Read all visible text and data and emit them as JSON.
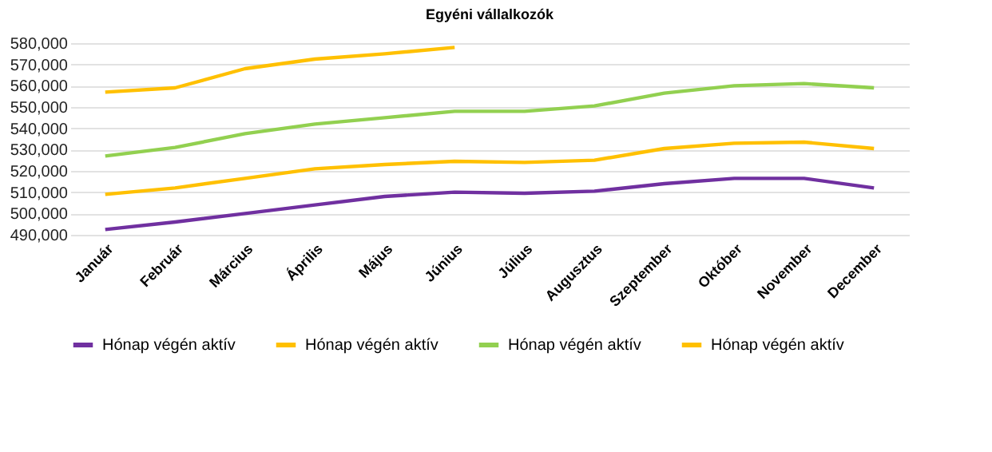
{
  "chart_data": {
    "type": "line",
    "title": "Egyéni vállalkozók",
    "categories": [
      "Január",
      "Február",
      "Március",
      "Április",
      "Május",
      "Június",
      "Július",
      "Augusztus",
      "Szeptember",
      "Október",
      "November",
      "December"
    ],
    "series": [
      {
        "name": "Hónap végén aktív",
        "color": "#7030a0",
        "values": [
          492500,
          496000,
          500000,
          504000,
          508000,
          510000,
          509500,
          510500,
          514000,
          516500,
          516500,
          512000
        ]
      },
      {
        "name": "Hónap végén aktív",
        "color": "#ffc000",
        "values": [
          509000,
          512000,
          516500,
          521000,
          523000,
          524500,
          524000,
          525000,
          530500,
          533000,
          533500,
          530500
        ]
      },
      {
        "name": "Hónap végén aktív",
        "color": "#92d050",
        "values": [
          527000,
          531000,
          537500,
          542000,
          545000,
          548000,
          548000,
          550500,
          556500,
          560000,
          561000,
          559000
        ]
      },
      {
        "name": "Hónap végén aktív",
        "color": "#ffc000",
        "values": [
          557000,
          559000,
          568000,
          572500,
          575000,
          578000,
          null,
          null,
          null,
          null,
          null,
          null
        ]
      }
    ],
    "ylim": [
      490000,
      580000
    ],
    "yticks": [
      {
        "value": 490000,
        "label": "490,000"
      },
      {
        "value": 500000,
        "label": "500,000"
      },
      {
        "value": 510000,
        "label": "510,000"
      },
      {
        "value": 520000,
        "label": "520,000"
      },
      {
        "value": 530000,
        "label": "530,000"
      },
      {
        "value": 540000,
        "label": "540,000"
      },
      {
        "value": 550000,
        "label": "550,000"
      },
      {
        "value": 560000,
        "label": "560,000"
      },
      {
        "value": 570000,
        "label": "570,000"
      },
      {
        "value": 580000,
        "label": "580,000"
      }
    ],
    "grid": "y",
    "legend": "bottom",
    "marker": "none",
    "line_style": "solid"
  }
}
